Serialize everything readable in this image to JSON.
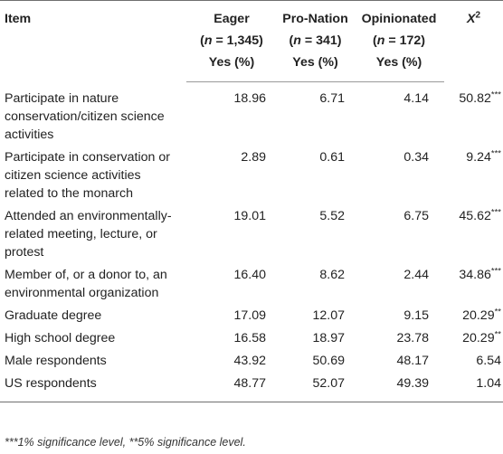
{
  "table": {
    "headers": {
      "item": "Item",
      "groups": [
        {
          "name": "Eager",
          "n": "(n = 1,345)",
          "unit": "Yes (%)"
        },
        {
          "name": "Pro-Nation",
          "n": "(n = 341)",
          "unit": "Yes (%)"
        },
        {
          "name": "Opinionated",
          "n": "(n = 172)",
          "unit": "Yes (%)"
        }
      ],
      "chi_symbol": "X",
      "chi_exp": "2"
    },
    "rows": [
      {
        "item": "Participate in nature conservation/citizen science activities",
        "eager": "18.96",
        "pro_nation": "6.71",
        "opinionated": "4.14",
        "chi": "50.82",
        "sig": "***"
      },
      {
        "item": "Participate in conservation or citizen science activities related to the monarch",
        "eager": "2.89",
        "pro_nation": "0.61",
        "opinionated": "0.34",
        "chi": "9.24",
        "sig": "***"
      },
      {
        "item": "Attended an environmentally-related meeting, lecture, or protest",
        "eager": "19.01",
        "pro_nation": "5.52",
        "opinionated": "6.75",
        "chi": "45.62",
        "sig": "***"
      },
      {
        "item": "Member of, or a donor to, an environmental organization",
        "eager": "16.40",
        "pro_nation": "8.62",
        "opinionated": "2.44",
        "chi": "34.86",
        "sig": "***"
      },
      {
        "item": "Graduate degree",
        "eager": "17.09",
        "pro_nation": "12.07",
        "opinionated": "9.15",
        "chi": "20.29",
        "sig": "**"
      },
      {
        "item": "High school degree",
        "eager": "16.58",
        "pro_nation": "18.97",
        "opinionated": "23.78",
        "chi": "20.29",
        "sig": "**"
      },
      {
        "item": "Male respondents",
        "eager": "43.92",
        "pro_nation": "50.69",
        "opinionated": "48.17",
        "chi": "6.54",
        "sig": ""
      },
      {
        "item": "US respondents",
        "eager": "48.77",
        "pro_nation": "52.07",
        "opinionated": "49.39",
        "chi": "1.04",
        "sig": ""
      }
    ]
  },
  "footnote": "***1% significance level, **5% significance level."
}
